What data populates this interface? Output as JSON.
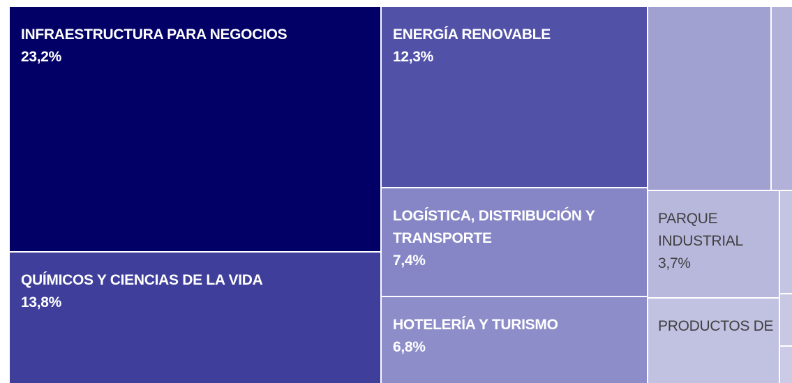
{
  "chart_data": {
    "type": "treemap",
    "categories": [
      "INFRAESTRUCTURA PARA NEGOCIOS",
      "QUÍMICOS Y CIENCIAS DE LA VIDA",
      "ENERGÍA RENOVABLE",
      "LOGÍSTICA, DISTRIBUCIÓN Y TRANSPORTE",
      "HOTELERÍA Y TURISMO",
      null,
      null,
      "PARQUE INDUSTRIAL",
      "PRODUCTOS DE",
      null,
      null,
      null
    ],
    "values": [
      23.2,
      13.8,
      12.3,
      7.4,
      6.8,
      4.5,
      0.8,
      3.7,
      3.0,
      0.4,
      0.3,
      0.2
    ],
    "value_labels": [
      "23,2%",
      "13,8%",
      "12,3%",
      "7,4%",
      "6,8%",
      null,
      null,
      "3,7%",
      null,
      null,
      null,
      null
    ],
    "colors": [
      "#020066",
      "#3f3f9b",
      "#5151a8",
      "#8686c6",
      "#8d8dc9",
      "#a0a0d1",
      "#b1b1da",
      "#b8b8dd",
      "#c1c1e1",
      "#c4c4e3",
      "#c8c8e5",
      "#cbcbe7"
    ]
  }
}
